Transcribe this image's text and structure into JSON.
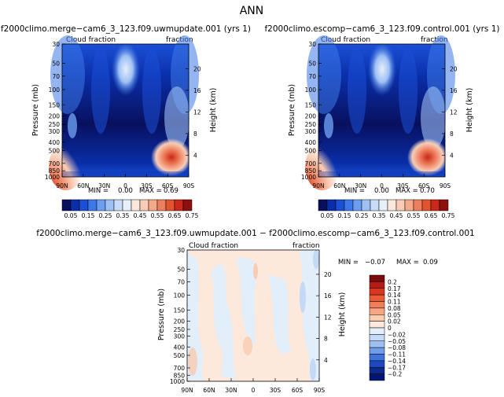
{
  "page_title": "ANN",
  "panels": [
    {
      "title": "f2000climo.merge−cam6_3_123.f09.uwmupdate.001 (yrs 1)",
      "left_label": "Cloud  fraction",
      "right_label": "fraction",
      "min_label": "MIN =",
      "min_value": "0.00",
      "max_label": "MAX =",
      "max_value": "0.69",
      "ylabel": "Pressure (mb)",
      "y2label": "Height (km)"
    },
    {
      "title": "f2000climo.escomp−cam6_3_123.f09.control.001 (yrs 1)",
      "left_label": "Cloud  fraction",
      "right_label": "fraction",
      "min_label": "MIN =",
      "min_value": "0.00",
      "max_label": "MAX =",
      "max_value": "0.70",
      "ylabel": "Pressure (mb)",
      "y2label": "Height (km)"
    },
    {
      "title": "f2000climo.merge−cam6_3_123.f09.uwmupdate.001  −  f2000climo.escomp−cam6_3_123.f09.control.001",
      "left_label": "Cloud  fraction",
      "right_label": "fraction",
      "min_label": "MIN =",
      "min_value": "−0.07",
      "max_label": "MAX =",
      "max_value": "0.09",
      "ylabel": "Pressure (mb)",
      "y2label": "Height (km)"
    }
  ],
  "colorbar_top": {
    "labels": [
      "0.05",
      "0.15",
      "0.25",
      "0.35",
      "0.45",
      "0.55",
      "0.65",
      "0.75"
    ],
    "colors": [
      "#08105e",
      "#0a2ea8",
      "#1b4fd6",
      "#3c78e8",
      "#6b9ef0",
      "#9dc0f5",
      "#c7dcf8",
      "#e7eff9",
      "#fbe7dc",
      "#f8ccb6",
      "#f4a989",
      "#ee7f5c",
      "#e2532f",
      "#c9281a",
      "#8e0f0f"
    ]
  },
  "colorbar_diff": {
    "labels": [
      "0.2",
      "0.17",
      "0.14",
      "0.11",
      "0.08",
      "0.05",
      "0.02",
      "0",
      "−0.02",
      "−0.05",
      "−0.08",
      "−0.11",
      "−0.14",
      "−0.17",
      "−0.2"
    ],
    "colors": [
      "#7a0b0b",
      "#b51d14",
      "#d9371e",
      "#ea5a34",
      "#f27f58",
      "#f6a683",
      "#f9cbb0",
      "#fce9dc",
      "#e3eefb",
      "#c3d9f6",
      "#9dbff1",
      "#6f9deb",
      "#3e73dd",
      "#1c49c2",
      "#0c2a8d",
      "#041673"
    ]
  },
  "chart_data": [
    {
      "type": "heatmap",
      "name": "uwmupdate",
      "x_ticks": [
        "90N",
        "60N",
        "30N",
        "0",
        "30S",
        "60S",
        "90S"
      ],
      "y_ticks": [
        "30",
        "50",
        "70",
        "100",
        "150",
        "200",
        "250",
        "300",
        "400",
        "500",
        "700",
        "850",
        "1000"
      ],
      "y2_ticks": [
        "20",
        "16",
        "12",
        "8",
        "4"
      ],
      "xlim": [
        90,
        -90
      ],
      "ylim": [
        1000,
        30
      ],
      "y_scale": "log",
      "value_range": [
        0.0,
        0.69
      ]
    },
    {
      "type": "heatmap",
      "name": "control",
      "x_ticks": [
        "90N",
        "60N",
        "30N",
        "0",
        "30S",
        "60S",
        "90S"
      ],
      "y_ticks": [
        "30",
        "50",
        "70",
        "100",
        "150",
        "200",
        "250",
        "300",
        "400",
        "500",
        "700",
        "850",
        "1000"
      ],
      "y2_ticks": [
        "20",
        "16",
        "12",
        "8",
        "4"
      ],
      "xlim": [
        90,
        -90
      ],
      "ylim": [
        1000,
        30
      ],
      "y_scale": "log",
      "value_range": [
        0.0,
        0.7
      ]
    },
    {
      "type": "heatmap",
      "name": "difference",
      "x_ticks": [
        "90N",
        "60N",
        "30N",
        "0",
        "30S",
        "60S",
        "90S"
      ],
      "y_ticks": [
        "30",
        "50",
        "70",
        "100",
        "150",
        "200",
        "250",
        "300",
        "400",
        "500",
        "700",
        "850",
        "1000"
      ],
      "y2_ticks": [
        "20",
        "16",
        "12",
        "8",
        "4"
      ],
      "xlim": [
        90,
        -90
      ],
      "ylim": [
        1000,
        30
      ],
      "y_scale": "log",
      "value_range": [
        -0.07,
        0.09
      ]
    }
  ]
}
